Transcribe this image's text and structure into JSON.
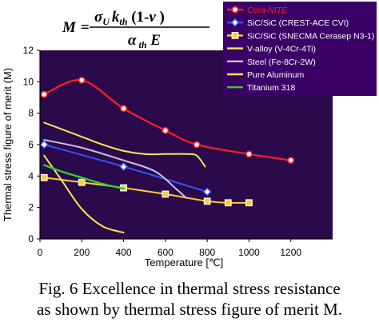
{
  "caption": {
    "line1": "Fig. 6 Excellence in thermal stress resistance",
    "line2": "as shown by thermal stress figure of merit  M."
  },
  "formula": {
    "lhs": "M",
    "equals": "=",
    "num_sigma": "σ",
    "num_sigma_sub": "U",
    "num_k": "k",
    "num_k_sub": "th",
    "num_rest": " (1-",
    "num_nu": "ν",
    "num_close": " )",
    "den_alpha": "α",
    "den_alpha_sub": " th",
    "den_E": " E"
  },
  "chart_data": {
    "type": "line",
    "title": "",
    "xlabel": "Temperature [℃]",
    "ylabel": "Thermal stress figure of merit (M)",
    "xlim": [
      0,
      1400
    ],
    "ylim": [
      0,
      12
    ],
    "xticks": [
      0,
      200,
      400,
      600,
      800,
      1000,
      1200
    ],
    "yticks": [
      0,
      2,
      4,
      6,
      8,
      10,
      12
    ],
    "grid": false,
    "legend_position": "top-right",
    "plot_background": "#2a0a4a",
    "legend_background": "#3a0066",
    "series": [
      {
        "name": "Cera-NITE",
        "color": "#ff2020",
        "marker": "circle",
        "line_width": 2.2,
        "italic": true,
        "x": [
          20,
          200,
          400,
          600,
          750,
          1000,
          1200
        ],
        "y": [
          9.2,
          10.1,
          8.3,
          6.9,
          6.0,
          5.4,
          5.0
        ]
      },
      {
        "name": "SiC/SiC (CREST-ACE CVI)",
        "color": "#3355ff",
        "marker": "diamond",
        "line_width": 2,
        "x": [
          20,
          400,
          800
        ],
        "y": [
          6.0,
          4.6,
          3.0
        ]
      },
      {
        "name": "SiC/SiC (SNECMA Cerasep N3-1)",
        "color": "#ffcc33",
        "marker": "square",
        "line_width": 2,
        "x": [
          20,
          200,
          400,
          600,
          800,
          900,
          1000
        ],
        "y": [
          3.9,
          3.6,
          3.25,
          2.85,
          2.4,
          2.3,
          2.3
        ]
      },
      {
        "name": "V-alloy (V-4Cr-4Ti)",
        "color": "#f2ea50",
        "marker": "none",
        "line_width": 2,
        "x": [
          20,
          100,
          200,
          300,
          400,
          500,
          600,
          700,
          750,
          790
        ],
        "y": [
          7.4,
          7.0,
          6.5,
          6.0,
          5.6,
          5.4,
          5.4,
          5.4,
          5.3,
          4.6
        ]
      },
      {
        "name": "Steel (Fe-8Cr-2W)",
        "color": "#ccc0e8",
        "marker": "none",
        "line_width": 2,
        "x": [
          20,
          200,
          400,
          550,
          650,
          700
        ],
        "y": [
          6.3,
          5.8,
          5.0,
          4.3,
          3.2,
          2.6
        ]
      },
      {
        "name": "Pure Aluminum",
        "color": "#f2ea50",
        "marker": "none",
        "line_width": 2,
        "x": [
          20,
          100,
          200,
          300,
          400
        ],
        "y": [
          5.3,
          3.8,
          1.9,
          0.8,
          0.4
        ]
      },
      {
        "name": "Titanium 318",
        "color": "#33cc33",
        "marker": "none",
        "line_width": 2.4,
        "x": [
          20,
          100,
          200,
          300,
          400
        ],
        "y": [
          4.7,
          4.3,
          3.9,
          3.5,
          3.2
        ]
      }
    ]
  }
}
